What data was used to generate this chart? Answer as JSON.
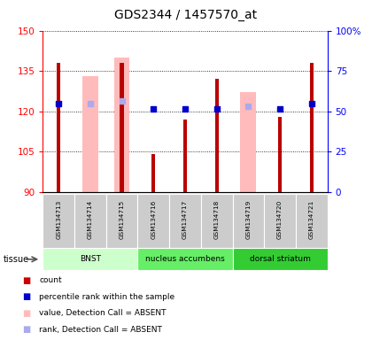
{
  "title": "GDS2344 / 1457570_at",
  "samples": [
    "GSM134713",
    "GSM134714",
    "GSM134715",
    "GSM134716",
    "GSM134717",
    "GSM134718",
    "GSM134719",
    "GSM134720",
    "GSM134721"
  ],
  "ylim_left": [
    90,
    150
  ],
  "ylim_right": [
    0,
    100
  ],
  "yticks_left": [
    90,
    105,
    120,
    135,
    150
  ],
  "yticks_right": [
    0,
    25,
    50,
    75,
    100
  ],
  "red_bars": [
    138,
    null,
    138,
    104,
    117,
    132,
    null,
    118,
    138
  ],
  "pink_bars": [
    null,
    133,
    140,
    null,
    null,
    null,
    127,
    null,
    null
  ],
  "blue_squares": [
    123,
    123,
    124,
    121,
    121,
    121,
    122,
    121,
    123
  ],
  "blue_sq_absent": [
    false,
    true,
    true,
    false,
    false,
    false,
    true,
    false,
    false
  ],
  "tissue_groups": [
    {
      "label": "BNST",
      "start": 0,
      "end": 2,
      "color": "#d0ffd0"
    },
    {
      "label": "nucleus accumbens",
      "start": 3,
      "end": 5,
      "color": "#66ee66"
    },
    {
      "label": "dorsal striatum",
      "start": 6,
      "end": 8,
      "color": "#44dd44"
    }
  ],
  "pink_bar_width": 0.5,
  "red_bar_width": 0.12,
  "legend_colors": [
    "#cc0000",
    "#0000cc",
    "#ffbbbb",
    "#aaaaee"
  ],
  "legend_labels": [
    "count",
    "percentile rank within the sample",
    "value, Detection Call = ABSENT",
    "rank, Detection Call = ABSENT"
  ]
}
